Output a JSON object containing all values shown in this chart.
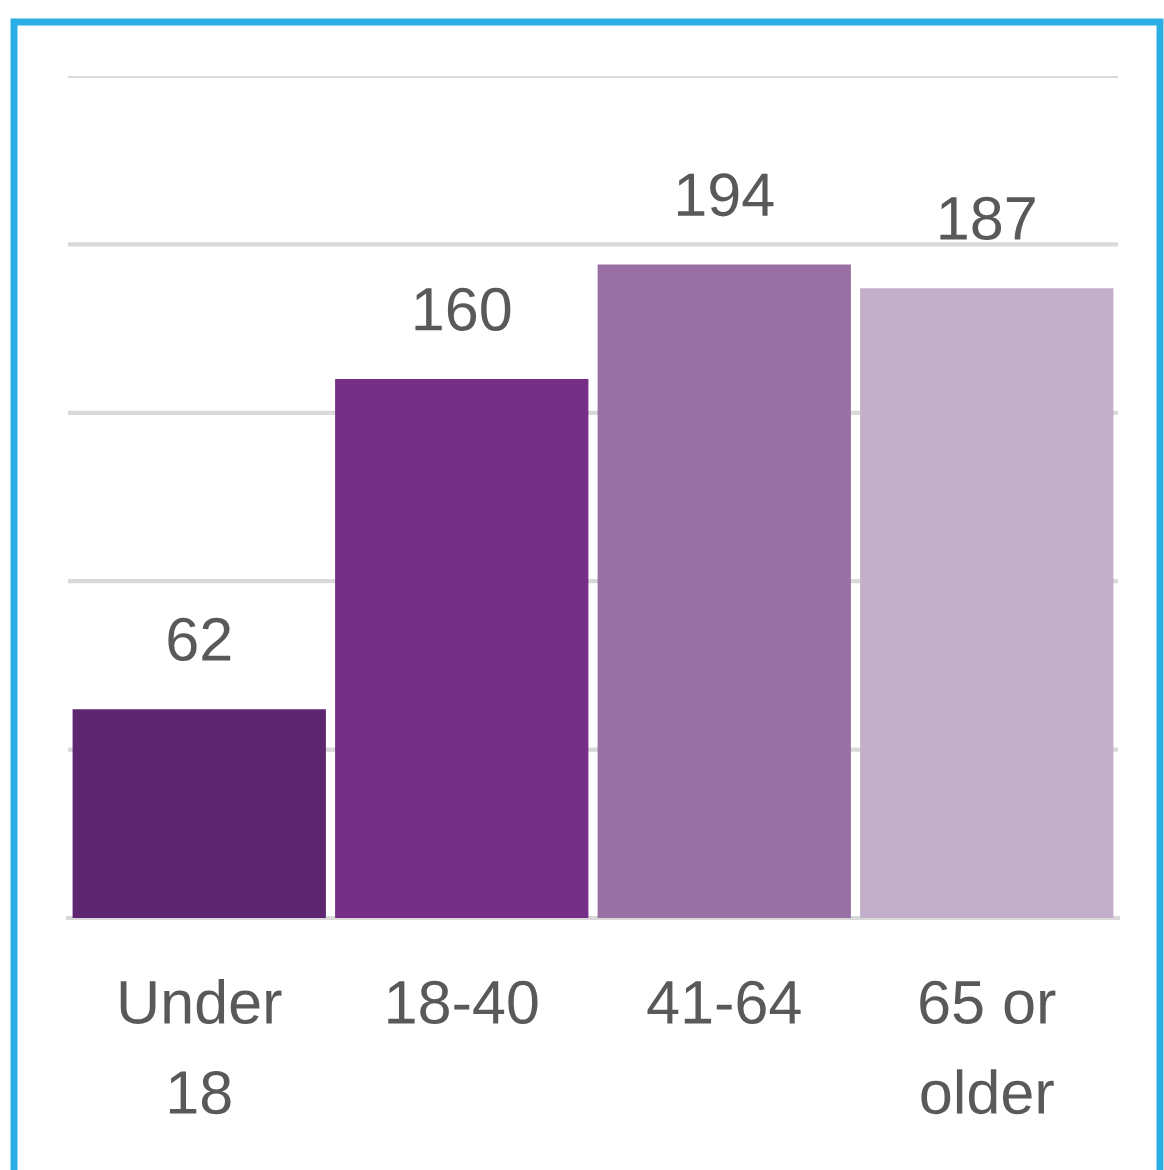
{
  "chart_data": {
    "type": "bar",
    "categories": [
      "Under 18",
      "18-40",
      "41-64",
      "65 or older"
    ],
    "values": [
      62,
      160,
      194,
      187
    ],
    "colors": [
      "#5e2670",
      "#762f86",
      "#9870a3",
      "#c3afc9"
    ],
    "data_labels": true,
    "ylim": [
      0,
      250
    ],
    "yticks": [
      {
        "value": 0,
        "label": null
      },
      {
        "value": 50,
        "label": null
      },
      {
        "value": 100,
        "label": null
      },
      {
        "value": 150,
        "label": null
      },
      {
        "value": 200,
        "label": null
      },
      {
        "value": 250,
        "label": null
      }
    ],
    "tick_labels": "x",
    "grid": "y",
    "legend": false
  }
}
